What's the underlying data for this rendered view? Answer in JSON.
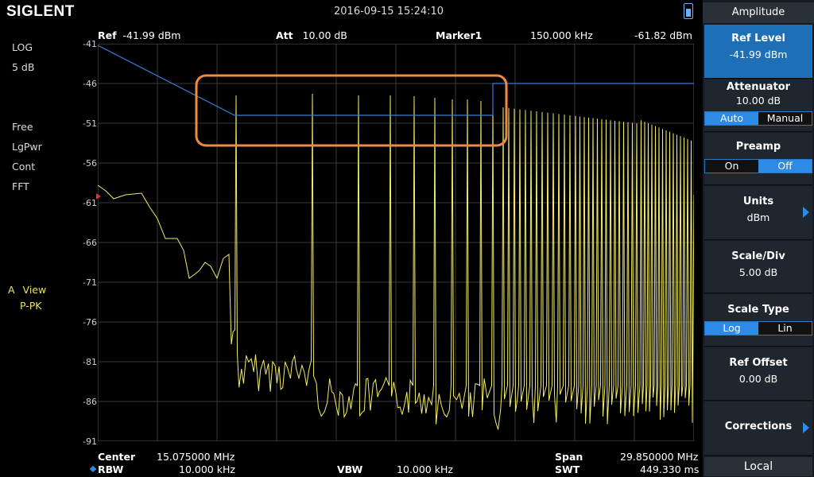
{
  "top": {
    "logo": "SIGLENT",
    "datetime": "2016-09-15   15:24:10"
  },
  "header": {
    "ref_label": "Ref",
    "ref_value": "-41.99 dBm",
    "att_label": "Att",
    "att_value": "10.00 dB",
    "marker_label": "Marker1",
    "marker_freq": "150.000 kHz",
    "marker_level": "-61.82 dBm"
  },
  "left_labels": {
    "scale_type": "LOG",
    "scale_div": "5 dB",
    "trig": "Free",
    "detector": "LgPwr",
    "sweep": "Cont",
    "mode": "FFT",
    "trace_id": "A",
    "trace_state": "View",
    "trace_detector": "P-PK"
  },
  "y_ticks": [
    "-41",
    "-46",
    "-51",
    "-56",
    "-61",
    "-66",
    "-71",
    "-76",
    "-81",
    "-86",
    "-91"
  ],
  "bottom": {
    "center_label": "Center",
    "center_value": "15.075000 MHz",
    "span_label": "Span",
    "span_value": "29.850000 MHz",
    "rbw_label": "RBW",
    "rbw_value": "10.000 kHz",
    "vbw_label": "VBW",
    "vbw_value": "10.000 kHz",
    "swt_label": "SWT",
    "swt_value": "449.330 ms"
  },
  "panel": {
    "title": "Amplitude",
    "ref_level": {
      "title": "Ref Level",
      "value": "-41.99 dBm"
    },
    "attenuator": {
      "title": "Attenuator",
      "value": "10.00 dB",
      "opt1": "Auto",
      "opt2": "Manual"
    },
    "preamp": {
      "title": "Preamp",
      "opt1": "On",
      "opt2": "Off"
    },
    "units": {
      "title": "Units",
      "value": "dBm"
    },
    "scale_div": {
      "title": "Scale/Div",
      "value": "5.00 dB"
    },
    "scale_type": {
      "title": "Scale Type",
      "opt1": "Log",
      "opt2": "Lin"
    },
    "ref_offset": {
      "title": "Ref Offset",
      "value": "0.00 dB"
    },
    "corrections": {
      "title": "Corrections"
    },
    "local": "Local"
  },
  "colors": {
    "trace": "#f2ec6a",
    "limit_line": "#3a7bd5",
    "highlight_box": "#f08a3c",
    "grid": "#4a4a4a",
    "active_button": "#1d6fb8"
  },
  "chart_data": {
    "type": "line",
    "ylim": [
      -91,
      -41
    ],
    "y_unit": "dBm",
    "x_start_mhz": 0.15,
    "x_stop_mhz": 30.0,
    "marker1": {
      "x_khz": 150.0,
      "y_dbm": -61.82
    }
  }
}
